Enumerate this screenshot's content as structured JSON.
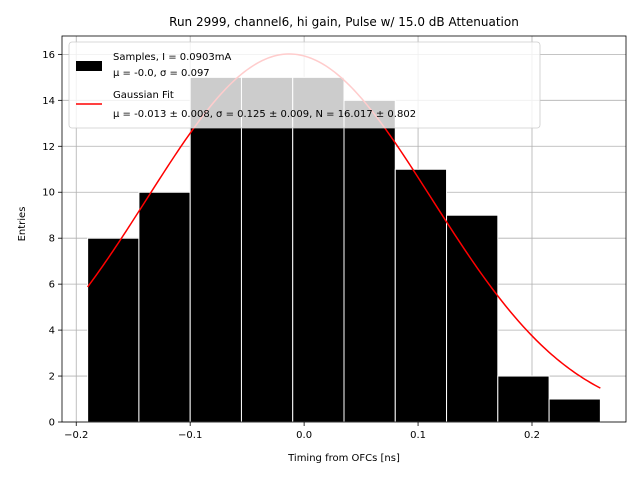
{
  "chart_data": {
    "type": "bar",
    "title": "Run 2999, channel6, hi gain, Pulse w/ 15.0 dB Attenuation",
    "xlabel": "Timing from OFCs [ns]",
    "ylabel": "Entries",
    "xlim": [
      -0.2125,
      0.2825
    ],
    "ylim": [
      0,
      16.8
    ],
    "xticks": [
      -0.2,
      -0.1,
      0.0,
      0.1,
      0.2
    ],
    "xtick_labels": [
      "−0.2",
      "−0.1",
      "0.0",
      "0.1",
      "0.2"
    ],
    "yticks": [
      0,
      2,
      4,
      6,
      8,
      10,
      12,
      14,
      16
    ],
    "ytick_labels": [
      "0",
      "2",
      "4",
      "6",
      "8",
      "10",
      "12",
      "14",
      "16"
    ],
    "grid": true,
    "legend_position": "top-left",
    "histogram": {
      "name": "Samples, I = 0.0903mA",
      "stats": "μ = -0.0, σ = 0.097",
      "color": "#000000",
      "edge_color": "#ffffff",
      "bin_edges": [
        -0.19,
        -0.145,
        -0.1,
        -0.055,
        -0.01,
        0.035,
        0.08,
        0.125,
        0.17,
        0.215,
        0.26
      ],
      "counts": [
        8,
        10,
        15,
        15,
        15,
        14,
        11,
        9,
        2,
        1
      ]
    },
    "fit": {
      "name": "Gaussian Fit",
      "stats": "μ = -0.013 ± 0.008, σ = 0.125 ± 0.009, N = 16.017 ± 0.802",
      "color": "#ff0000",
      "mu": -0.013,
      "sigma": 0.125,
      "N": 16.017,
      "x_range": [
        -0.19,
        0.26
      ]
    }
  }
}
